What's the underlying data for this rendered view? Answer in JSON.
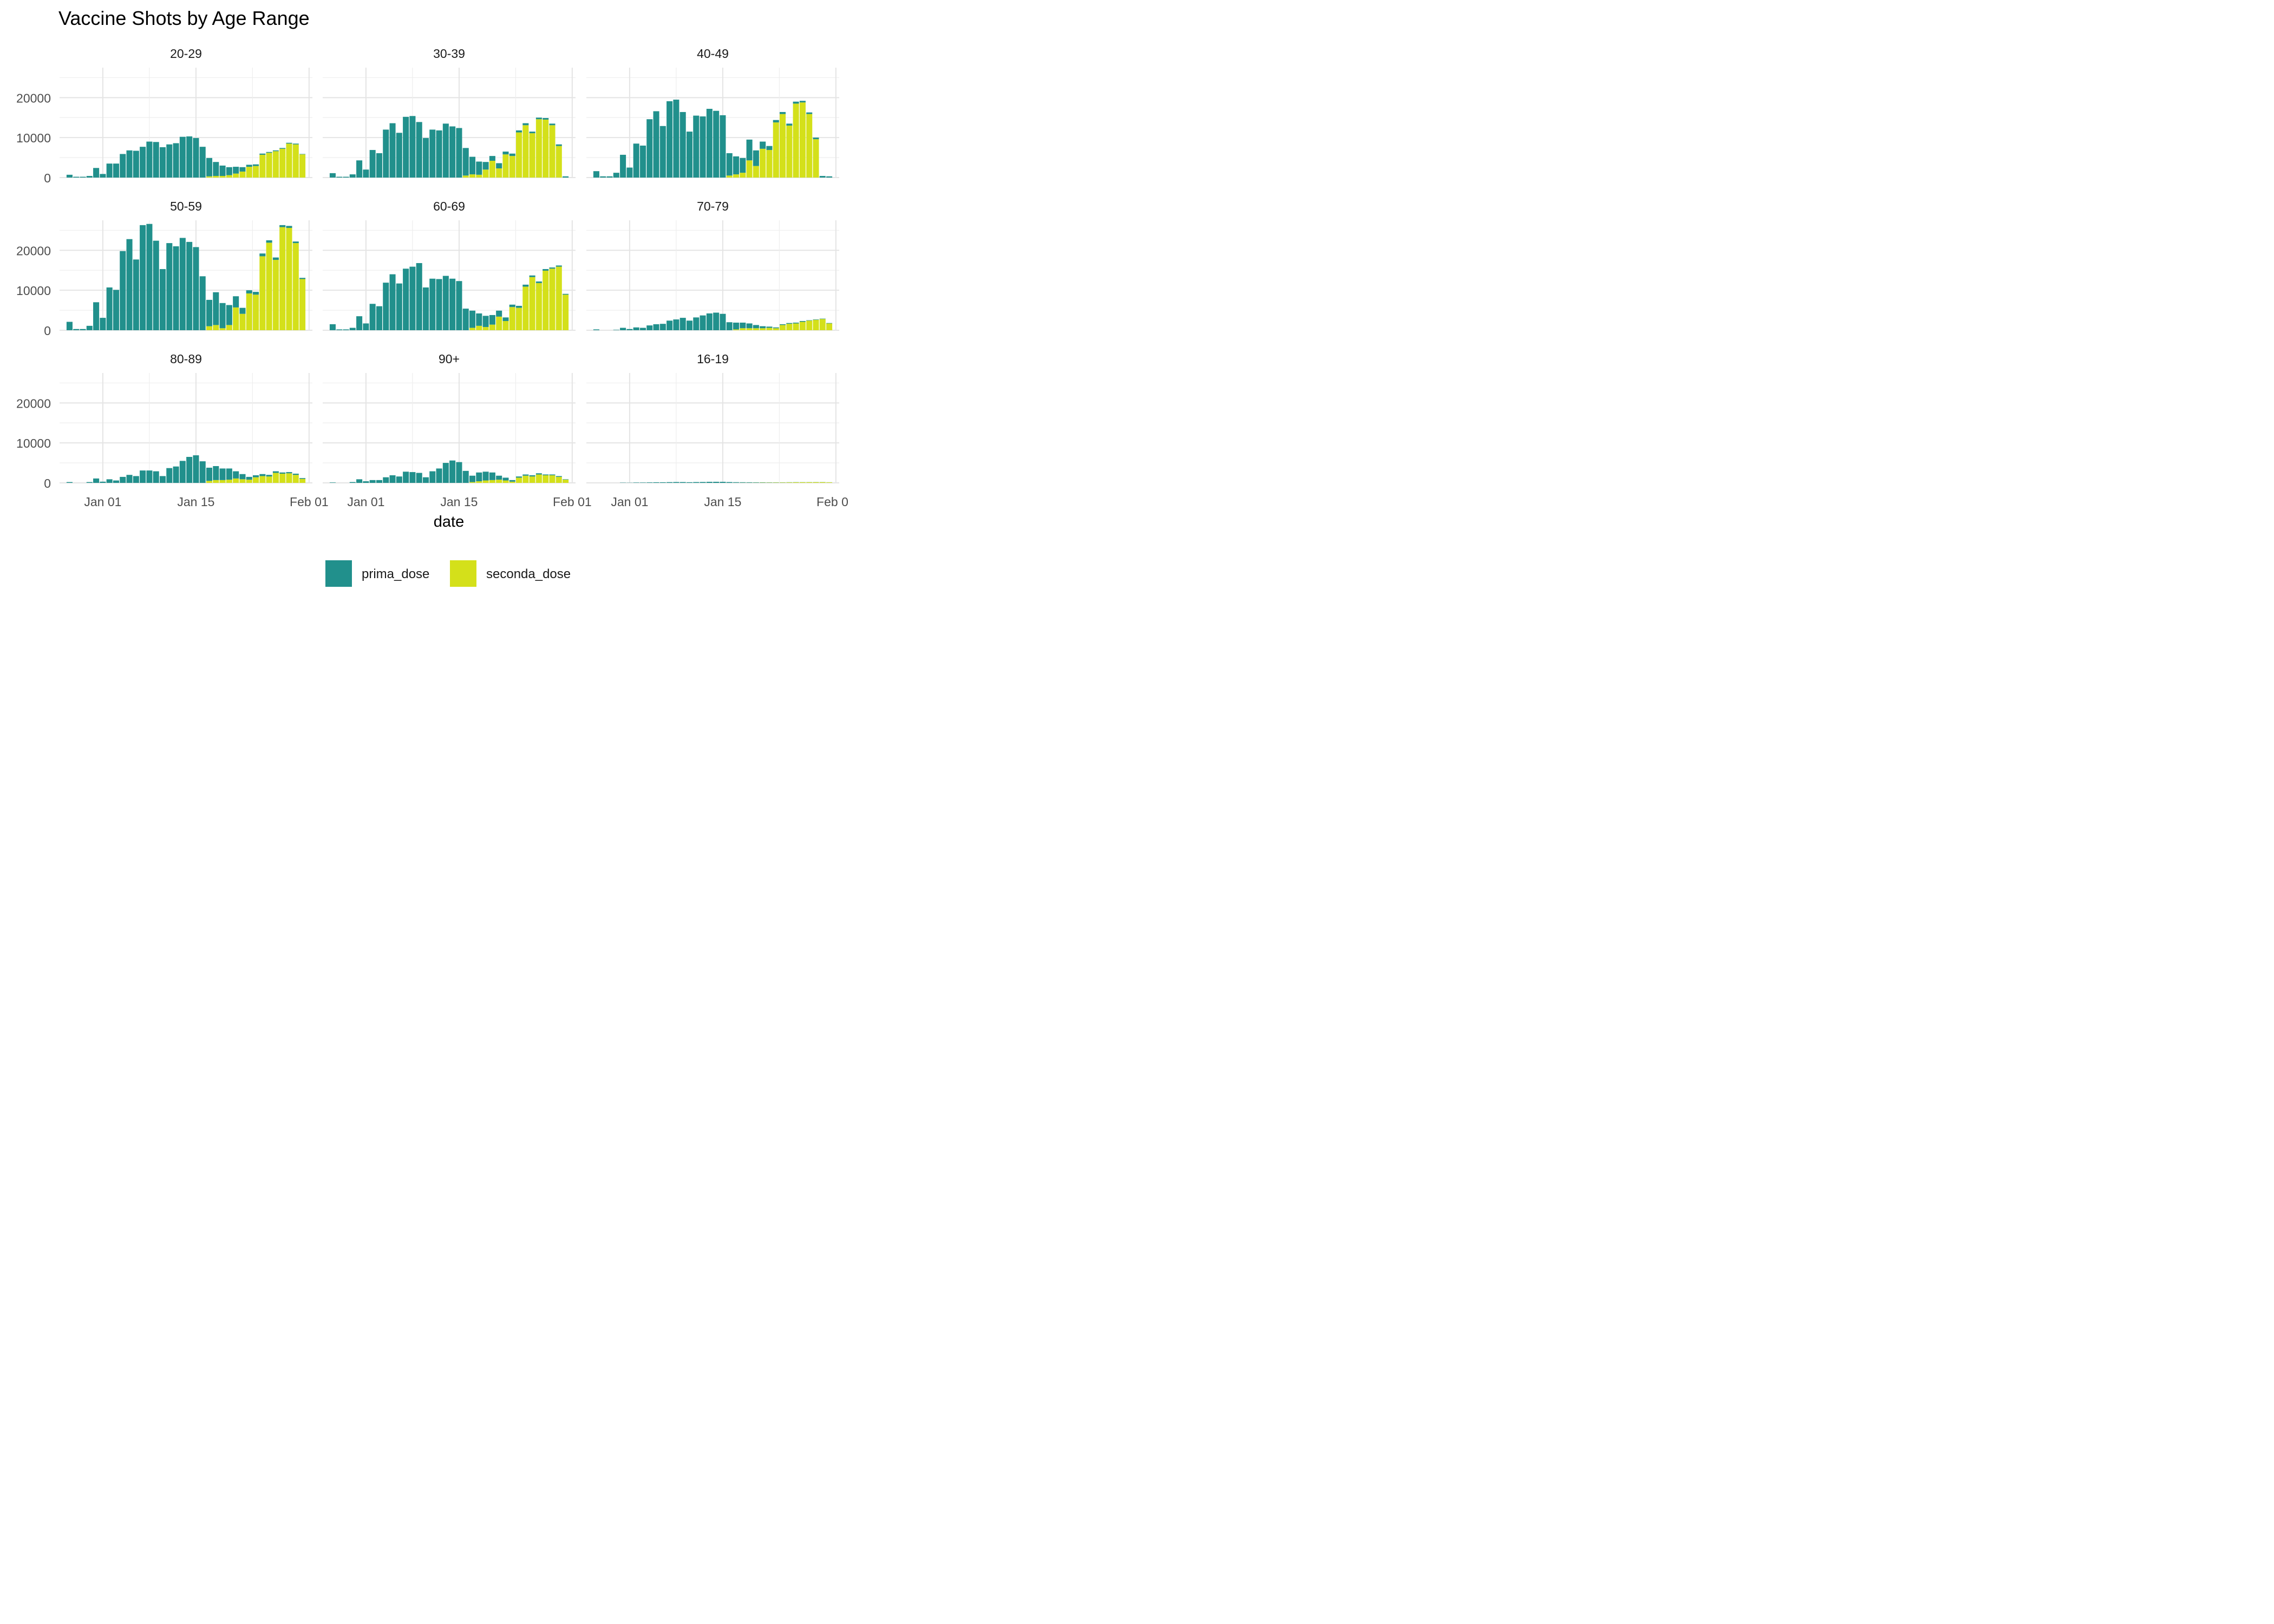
{
  "title": "Vaccine Shots by Age Range",
  "chart_data": {
    "type": "bar",
    "stacked": true,
    "title": "Vaccine Shots by Age Range",
    "xlabel": "date",
    "ylabel": "",
    "ylim": [
      0,
      27500
    ],
    "y_ticks": [
      0,
      10000,
      20000
    ],
    "x_ticks": [
      {
        "date": "2021-01-01",
        "label": "Jan 01"
      },
      {
        "date": "2021-01-15",
        "label": "Jan 15"
      },
      {
        "date": "2021-02-01",
        "label": "Feb 01"
      }
    ],
    "dates": [
      "2020-12-27",
      "2020-12-28",
      "2020-12-29",
      "2020-12-30",
      "2020-12-31",
      "2021-01-01",
      "2021-01-02",
      "2021-01-03",
      "2021-01-04",
      "2021-01-05",
      "2021-01-06",
      "2021-01-07",
      "2021-01-08",
      "2021-01-09",
      "2021-01-10",
      "2021-01-11",
      "2021-01-12",
      "2021-01-13",
      "2021-01-14",
      "2021-01-15",
      "2021-01-16",
      "2021-01-17",
      "2021-01-18",
      "2021-01-19",
      "2021-01-20",
      "2021-01-21",
      "2021-01-22",
      "2021-01-23",
      "2021-01-24",
      "2021-01-25",
      "2021-01-26",
      "2021-01-27",
      "2021-01-28",
      "2021-01-29",
      "2021-01-30",
      "2021-01-31"
    ],
    "grid": true,
    "legend": {
      "position": "bottom",
      "entries": [
        {
          "name": "prima_dose",
          "color": "#21908C"
        },
        {
          "name": "seconda_dose",
          "color": "#D4E01A"
        }
      ]
    },
    "facets": [
      {
        "label": "20-29",
        "prima_dose": [
          700,
          200,
          200,
          400,
          2400,
          900,
          3500,
          3500,
          5900,
          6800,
          6700,
          7700,
          9000,
          8900,
          7600,
          8300,
          8600,
          10200,
          10300,
          9900,
          7700,
          4600,
          3500,
          2600,
          2000,
          1700,
          1100,
          500,
          400,
          300,
          200,
          200,
          200,
          200,
          200,
          100
        ],
        "seconda_dose": [
          0,
          0,
          0,
          0,
          0,
          0,
          0,
          0,
          0,
          0,
          0,
          0,
          0,
          0,
          0,
          0,
          0,
          0,
          0,
          0,
          0,
          300,
          400,
          400,
          600,
          1000,
          1500,
          2700,
          2900,
          5700,
          6200,
          6600,
          7200,
          8500,
          8300,
          5800
        ]
      },
      {
        "label": "30-39",
        "prima_dose": [
          1100,
          200,
          200,
          800,
          4300,
          2000,
          6900,
          6100,
          12000,
          13600,
          11200,
          15200,
          15400,
          13900,
          9900,
          12000,
          11800,
          13500,
          12800,
          12400,
          6900,
          4400,
          3300,
          1900,
          1200,
          1300,
          700,
          600,
          500,
          500,
          400,
          400,
          400,
          400,
          400,
          300
        ],
        "seconda_dose": [
          0,
          0,
          0,
          0,
          0,
          0,
          0,
          0,
          0,
          0,
          0,
          0,
          0,
          0,
          0,
          0,
          0,
          0,
          0,
          0,
          500,
          800,
          700,
          2000,
          4200,
          2300,
          5800,
          5400,
          11300,
          13100,
          11100,
          14600,
          14500,
          13100,
          7900,
          0
        ]
      },
      {
        "label": "40-49",
        "prima_dose": [
          1600,
          300,
          300,
          1200,
          5700,
          2500,
          8500,
          8000,
          14600,
          16600,
          12900,
          19100,
          19500,
          16400,
          11500,
          15500,
          15300,
          17200,
          16700,
          15600,
          5600,
          4500,
          3700,
          5200,
          3900,
          1800,
          1000,
          600,
          500,
          500,
          500,
          400,
          400,
          400,
          400,
          300
        ],
        "seconda_dose": [
          0,
          0,
          0,
          0,
          0,
          0,
          0,
          0,
          0,
          0,
          0,
          0,
          0,
          0,
          0,
          0,
          0,
          0,
          0,
          0,
          0,
          0,
          0,
          0,
          0,
          0,
          0,
          0,
          0,
          0,
          0,
          0,
          0,
          0,
          0,
          0
        ],
        "seconda_override": [
          0,
          0,
          0,
          0,
          0,
          0,
          0,
          0,
          0,
          0,
          0,
          0,
          0,
          0,
          0,
          0,
          0,
          0,
          0,
          0,
          500,
          800,
          1200,
          4300,
          2900,
          7200,
          6900,
          13800,
          15900,
          13000,
          18500,
          18800,
          15900,
          9600,
          0,
          0
        ]
      },
      {
        "label": "50-59",
        "prima_dose": [
          2100,
          300,
          300,
          1100,
          7000,
          3100,
          10700,
          10100,
          19800,
          22800,
          17700,
          26300,
          26600,
          22400,
          15300,
          21800,
          21000,
          23100,
          22100,
          20800,
          13500,
          6600,
          8200,
          6300,
          5000,
          2800,
          1500,
          800,
          700,
          700,
          600,
          600,
          500,
          500,
          400,
          300
        ],
        "seconda_dose": [
          0,
          0,
          0,
          0,
          0,
          0,
          0,
          0,
          0,
          0,
          0,
          0,
          0,
          0,
          0,
          0,
          0,
          0,
          0,
          0,
          0,
          0,
          0,
          0,
          0,
          0,
          0,
          0,
          0,
          0,
          0,
          0,
          0,
          0,
          0,
          0
        ],
        "seconda_override": [
          0,
          0,
          0,
          0,
          0,
          0,
          0,
          0,
          0,
          0,
          0,
          0,
          0,
          0,
          0,
          0,
          0,
          0,
          0,
          0,
          0,
          1000,
          1300,
          500,
          1300,
          5700,
          4100,
          9200,
          8900,
          18500,
          21900,
          17600,
          25800,
          25600,
          21800,
          12800
        ]
      },
      {
        "label": "60-69",
        "prima_dose": [
          1500,
          200,
          200,
          600,
          3500,
          1700,
          6600,
          6000,
          11900,
          14000,
          11700,
          15400,
          15900,
          16800,
          10700,
          12900,
          12800,
          13600,
          12900,
          12300,
          5400,
          4300,
          3100,
          2800,
          2400,
          1500,
          900,
          600,
          500,
          500,
          400,
          400,
          400,
          300,
          300,
          200
        ],
        "seconda_dose": [
          0,
          0,
          0,
          0,
          0,
          0,
          0,
          0,
          0,
          0,
          0,
          0,
          0,
          0,
          0,
          0,
          0,
          0,
          0,
          0,
          0,
          0,
          0,
          0,
          0,
          0,
          0,
          0,
          0,
          0,
          0,
          0,
          0,
          0,
          0,
          0
        ],
        "seconda_override": [
          0,
          0,
          0,
          0,
          0,
          0,
          0,
          0,
          0,
          0,
          0,
          0,
          0,
          0,
          0,
          0,
          0,
          0,
          0,
          0,
          0,
          600,
          1100,
          800,
          1400,
          3400,
          2300,
          5800,
          5600,
          10900,
          13300,
          11800,
          14900,
          15400,
          15900,
          8900
        ]
      },
      {
        "label": "70-79",
        "prima_dose": [
          200,
          0,
          0,
          100,
          600,
          300,
          700,
          600,
          1200,
          1500,
          1600,
          2400,
          2700,
          3100,
          2400,
          3200,
          3700,
          4200,
          4400,
          4100,
          2000,
          1700,
          1400,
          1200,
          800,
          500,
          300,
          200,
          200,
          200,
          200,
          200,
          100,
          100,
          100,
          100
        ],
        "seconda_dose": [
          0,
          0,
          0,
          0,
          0,
          0,
          0,
          0,
          0,
          0,
          0,
          0,
          0,
          0,
          0,
          0,
          0,
          0,
          0,
          0,
          0,
          200,
          500,
          500,
          500,
          500,
          600,
          500,
          1300,
          1600,
          1700,
          2100,
          2400,
          2600,
          2800,
          1700
        ]
      },
      {
        "label": "80-89",
        "prima_dose": [
          200,
          0,
          0,
          200,
          1100,
          300,
          900,
          600,
          1500,
          2000,
          1700,
          3100,
          3100,
          2900,
          1700,
          3700,
          4100,
          5500,
          6500,
          6900,
          5400,
          3300,
          3500,
          2900,
          2800,
          1800,
          1300,
          700,
          500,
          500,
          400,
          400,
          300,
          300,
          300,
          200
        ],
        "seconda_dose": [
          0,
          0,
          0,
          0,
          0,
          0,
          0,
          0,
          0,
          0,
          0,
          0,
          0,
          0,
          0,
          0,
          0,
          0,
          0,
          0,
          0,
          500,
          700,
          700,
          800,
          1100,
          900,
          800,
          1400,
          1700,
          1600,
          2500,
          2300,
          2400,
          2000,
          1000
        ]
      },
      {
        "label": "90+",
        "prima_dose": [
          100,
          0,
          0,
          200,
          900,
          400,
          700,
          700,
          1400,
          1900,
          1600,
          2800,
          2700,
          2500,
          1400,
          2900,
          3600,
          5000,
          5600,
          5200,
          3000,
          1600,
          2200,
          2200,
          1900,
          1000,
          700,
          400,
          300,
          300,
          300,
          300,
          200,
          200,
          200,
          100
        ],
        "seconda_dose": [
          0,
          0,
          0,
          0,
          0,
          0,
          0,
          0,
          0,
          0,
          0,
          0,
          0,
          0,
          0,
          0,
          0,
          0,
          0,
          0,
          0,
          200,
          400,
          600,
          700,
          800,
          600,
          300,
          1300,
          1800,
          1600,
          2100,
          1900,
          1900,
          1500,
          800
        ]
      },
      {
        "label": "16-19",
        "prima_dose": [
          0,
          0,
          0,
          0,
          60,
          40,
          90,
          90,
          120,
          150,
          150,
          180,
          210,
          200,
          160,
          200,
          220,
          260,
          270,
          260,
          200,
          150,
          130,
          120,
          100,
          80,
          60,
          50,
          40,
          40,
          40,
          30,
          30,
          30,
          30,
          20
        ],
        "seconda_dose": [
          0,
          0,
          0,
          0,
          0,
          0,
          0,
          0,
          0,
          0,
          0,
          0,
          0,
          0,
          0,
          0,
          0,
          0,
          0,
          0,
          0,
          20,
          30,
          30,
          40,
          60,
          60,
          80,
          100,
          120,
          140,
          160,
          170,
          180,
          180,
          130
        ]
      }
    ]
  }
}
